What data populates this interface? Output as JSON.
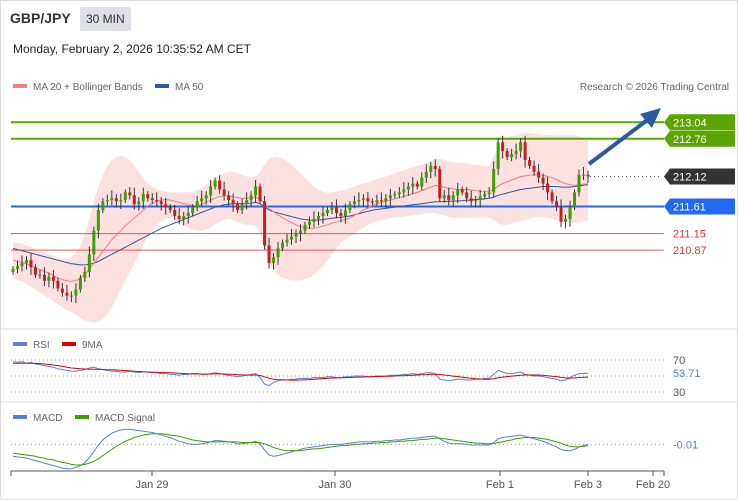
{
  "header": {
    "symbol": "GBP/JPY",
    "timeframe": "30 MIN",
    "datetime": "Monday, February 2, 2026 10:35:52 AM CET"
  },
  "main_panel": {
    "legend": [
      {
        "label": "MA 20 + Bollinger Bands",
        "color": "#f08080"
      },
      {
        "label": "MA 50",
        "color": "#2f5a9e"
      }
    ],
    "source": "Research © 2026 Trading Central"
  },
  "rsi_panel": {
    "legend": [
      {
        "label": "RSI",
        "color": "#5b7fdc"
      },
      {
        "label": "9MA",
        "color": "#dd0000"
      }
    ],
    "levels": [
      70,
      30
    ],
    "value_label": "53.71"
  },
  "macd_panel": {
    "legend": [
      {
        "label": "MACD",
        "color": "#5b7fdc"
      },
      {
        "label": "MACD Signal",
        "color": "#3c9e00"
      }
    ],
    "value_label": "-0.01"
  },
  "colors": {
    "green_level": "#5aa500",
    "blue_level": "#2468f2",
    "red_level": "#dd3333",
    "current_price_bg": "#333333",
    "bollinger_fill": "#fde0e0",
    "arrow": "#2c5aa0"
  },
  "chart_data": {
    "type": "candlestick",
    "y_range": [
      209.6,
      213.35
    ],
    "x_tick_labels": [
      "Jan 29",
      "Jan 30",
      "Feb 1",
      "Feb 3",
      "Feb 20"
    ],
    "price_levels": [
      {
        "value": 213.04,
        "label": "213.04",
        "kind": "resistance"
      },
      {
        "value": 212.76,
        "label": "212.76",
        "kind": "resistance"
      },
      {
        "value": 212.12,
        "label": "212.12",
        "kind": "current"
      },
      {
        "value": 211.61,
        "label": "211.61",
        "kind": "pivot"
      },
      {
        "value": 211.15,
        "label": "211.15",
        "kind": "support"
      },
      {
        "value": 210.87,
        "label": "210.87",
        "kind": "support"
      }
    ],
    "projected_target": 213.04,
    "closes": [
      210.55,
      210.6,
      210.65,
      210.7,
      210.58,
      210.45,
      210.45,
      210.35,
      210.42,
      210.35,
      210.22,
      210.15,
      210.1,
      210.1,
      210.2,
      210.4,
      210.5,
      210.8,
      211.2,
      211.55,
      211.7,
      211.72,
      211.75,
      211.7,
      211.72,
      211.85,
      211.8,
      211.65,
      211.7,
      211.82,
      211.75,
      211.72,
      211.7,
      211.65,
      211.6,
      211.55,
      211.45,
      211.4,
      211.45,
      211.5,
      211.6,
      211.7,
      211.75,
      211.8,
      211.95,
      212.05,
      211.9,
      211.8,
      211.72,
      211.65,
      211.55,
      211.65,
      211.72,
      211.8,
      211.95,
      211.7,
      210.95,
      210.65,
      210.75,
      210.9,
      211.0,
      211.05,
      211.1,
      211.15,
      211.2,
      211.3,
      211.35,
      211.4,
      211.45,
      211.5,
      211.55,
      211.6,
      211.5,
      211.45,
      211.55,
      211.65,
      211.7,
      211.72,
      211.75,
      211.7,
      211.68,
      211.72,
      211.7,
      211.75,
      211.8,
      211.82,
      211.85,
      211.9,
      211.95,
      212.0,
      211.95,
      212.1,
      212.2,
      212.3,
      212.25,
      211.75,
      211.8,
      211.72,
      211.8,
      211.9,
      211.85,
      211.75,
      211.7,
      211.72,
      211.78,
      211.82,
      211.85,
      212.25,
      212.7,
      212.55,
      212.45,
      212.5,
      212.55,
      212.7,
      212.4,
      212.3,
      212.2,
      212.1,
      212.0,
      211.85,
      211.7,
      211.6,
      211.35,
      211.4,
      211.6,
      211.85,
      212.15,
      212.15,
      212.12
    ],
    "ma20": [
      210.7,
      210.68,
      210.66,
      210.64,
      210.6,
      210.57,
      210.54,
      210.51,
      210.48,
      210.44,
      210.4,
      210.37,
      210.35,
      210.34,
      210.35,
      210.4,
      210.46,
      210.55,
      210.65,
      210.75,
      210.85,
      210.95,
      211.05,
      211.12,
      211.2,
      211.28,
      211.35,
      211.42,
      211.48,
      211.55,
      211.62,
      211.66,
      211.7,
      211.72,
      211.73,
      211.72,
      211.7,
      211.68,
      211.66,
      211.64,
      211.63,
      211.63,
      211.65,
      211.68,
      211.72,
      211.75,
      211.78,
      211.79,
      211.79,
      211.78,
      211.76,
      211.75,
      211.75,
      211.76,
      211.77,
      211.74,
      211.66,
      211.58,
      211.52,
      211.47,
      211.42,
      211.38,
      211.34,
      211.3,
      211.27,
      211.25,
      211.24,
      211.24,
      211.26,
      211.28,
      211.3,
      211.33,
      211.35,
      211.37,
      211.39,
      211.42,
      211.46,
      211.5,
      211.55,
      211.6,
      211.63,
      211.66,
      211.68,
      211.7,
      211.72,
      211.74,
      211.76,
      211.78,
      211.8,
      211.83,
      211.85,
      211.88,
      211.91,
      211.94,
      211.97,
      211.95,
      211.94,
      211.92,
      211.91,
      211.9,
      211.9,
      211.9,
      211.89,
      211.88,
      211.87,
      211.87,
      211.87,
      211.9,
      211.96,
      212.0,
      212.03,
      212.06,
      212.09,
      212.12,
      212.13,
      212.14,
      212.15,
      212.15,
      212.14,
      212.12,
      212.1,
      212.07,
      212.03,
      212.0,
      211.98,
      211.97,
      211.98,
      211.99,
      212.0
    ],
    "ma50": [
      210.9,
      210.88,
      210.86,
      210.84,
      210.82,
      210.8,
      210.78,
      210.76,
      210.74,
      210.72,
      210.7,
      210.68,
      210.66,
      210.64,
      210.63,
      210.62,
      210.62,
      210.63,
      210.65,
      210.68,
      210.72,
      210.76,
      210.8,
      210.84,
      210.88,
      210.92,
      210.96,
      211.0,
      211.04,
      211.08,
      211.12,
      211.16,
      211.2,
      211.24,
      211.27,
      211.3,
      211.33,
      211.36,
      211.39,
      211.42,
      211.45,
      211.48,
      211.51,
      211.54,
      211.57,
      211.6,
      211.62,
      211.64,
      211.65,
      211.66,
      211.66,
      211.66,
      211.66,
      211.67,
      211.68,
      211.66,
      211.6,
      211.55,
      211.52,
      211.5,
      211.48,
      211.46,
      211.44,
      211.42,
      211.4,
      211.39,
      211.38,
      211.38,
      211.38,
      211.39,
      211.4,
      211.41,
      211.42,
      211.43,
      211.44,
      211.45,
      211.47,
      211.49,
      211.51,
      211.53,
      211.55,
      211.56,
      211.57,
      211.58,
      211.59,
      211.6,
      211.61,
      211.62,
      211.63,
      211.64,
      211.65,
      211.66,
      211.67,
      211.68,
      211.69,
      211.69,
      211.69,
      211.7,
      211.7,
      211.71,
      211.71,
      211.72,
      211.72,
      211.73,
      211.73,
      211.74,
      211.75,
      211.77,
      211.8,
      211.82,
      211.84,
      211.86,
      211.88,
      211.9,
      211.91,
      211.92,
      211.93,
      211.94,
      211.95,
      211.95,
      211.95,
      211.95,
      211.94,
      211.94,
      211.94,
      211.95,
      211.96,
      211.97,
      211.98
    ],
    "bb_upper": [
      211.0,
      211.0,
      210.98,
      210.95,
      210.92,
      210.88,
      210.85,
      210.82,
      210.8,
      210.78,
      210.75,
      210.72,
      210.72,
      210.75,
      210.82,
      210.95,
      211.15,
      211.4,
      211.7,
      211.95,
      212.15,
      212.3,
      212.4,
      212.45,
      212.47,
      212.45,
      212.4,
      212.3,
      212.2,
      212.1,
      212.0,
      211.95,
      211.9,
      211.88,
      211.86,
      211.85,
      211.85,
      211.85,
      211.85,
      211.85,
      211.86,
      211.88,
      211.92,
      211.98,
      212.05,
      212.1,
      212.15,
      212.18,
      212.2,
      212.2,
      212.18,
      212.15,
      212.12,
      212.1,
      212.12,
      212.2,
      212.32,
      212.42,
      212.45,
      212.45,
      212.42,
      212.38,
      212.32,
      212.25,
      212.18,
      212.1,
      212.02,
      211.95,
      211.9,
      211.86,
      211.84,
      211.85,
      211.86,
      211.88,
      211.9,
      211.92,
      211.95,
      211.98,
      212.0,
      212.02,
      212.05,
      212.08,
      212.1,
      212.12,
      212.15,
      212.18,
      212.2,
      212.22,
      212.25,
      212.28,
      212.3,
      212.32,
      212.35,
      212.38,
      212.42,
      212.42,
      212.4,
      212.38,
      212.36,
      212.35,
      212.35,
      212.34,
      212.33,
      212.32,
      212.31,
      212.3,
      212.3,
      212.45,
      212.62,
      212.72,
      212.78,
      212.8,
      212.82,
      212.85,
      212.86,
      212.86,
      212.85,
      212.84,
      212.83,
      212.82,
      212.82,
      212.82,
      212.82,
      212.82,
      212.82,
      212.82,
      212.8,
      212.78,
      212.76
    ],
    "bb_lower": [
      210.4,
      210.36,
      210.34,
      210.3,
      210.25,
      210.2,
      210.15,
      210.1,
      210.05,
      210.0,
      209.95,
      209.9,
      209.85,
      209.82,
      209.78,
      209.72,
      209.68,
      209.66,
      209.65,
      209.66,
      209.7,
      209.78,
      209.9,
      210.05,
      210.2,
      210.35,
      210.5,
      210.65,
      210.8,
      210.95,
      211.1,
      211.2,
      211.3,
      211.36,
      211.4,
      211.42,
      211.4,
      211.35,
      211.3,
      211.25,
      211.22,
      211.2,
      211.2,
      211.22,
      211.25,
      211.3,
      211.35,
      211.38,
      211.4,
      211.38,
      211.35,
      211.32,
      211.3,
      211.3,
      211.28,
      211.15,
      210.9,
      210.7,
      210.55,
      210.45,
      210.4,
      210.38,
      210.36,
      210.35,
      210.36,
      210.38,
      210.4,
      210.45,
      210.52,
      210.6,
      210.7,
      210.8,
      210.9,
      211.0,
      211.05,
      211.1,
      211.15,
      211.2,
      211.25,
      211.3,
      211.33,
      211.36,
      211.38,
      211.4,
      211.41,
      211.42,
      211.43,
      211.44,
      211.45,
      211.46,
      211.47,
      211.48,
      211.5,
      211.5,
      211.5,
      211.48,
      211.46,
      211.44,
      211.42,
      211.42,
      211.42,
      211.42,
      211.42,
      211.42,
      211.42,
      211.42,
      211.42,
      211.38,
      211.32,
      211.3,
      211.3,
      211.32,
      211.34,
      211.36,
      211.38,
      211.4,
      211.42,
      211.44,
      211.43,
      211.42,
      211.4,
      211.38,
      211.36,
      211.35,
      211.34,
      211.34,
      211.35,
      211.36,
      211.38
    ],
    "rsi_range": [
      20,
      80
    ],
    "rsi": [
      68,
      67,
      68,
      66,
      67,
      65,
      64,
      63,
      62,
      61,
      59,
      58,
      57,
      56,
      56,
      57,
      58,
      60,
      61,
      59,
      58,
      57,
      56,
      56,
      55,
      55,
      56,
      55,
      54,
      55,
      55,
      54,
      54,
      53,
      53,
      52,
      52,
      51,
      52,
      52,
      53,
      53,
      52,
      52,
      53,
      54,
      53,
      52,
      51,
      50,
      49,
      50,
      51,
      52,
      53,
      48,
      40,
      38,
      42,
      44,
      45,
      45,
      46,
      46,
      47,
      47,
      47,
      48,
      48,
      48,
      49,
      49,
      48,
      48,
      49,
      49,
      50,
      50,
      50,
      49,
      49,
      50,
      50,
      50,
      51,
      51,
      51,
      52,
      52,
      53,
      52,
      53,
      54,
      54,
      53,
      46,
      45,
      44,
      45,
      46,
      46,
      45,
      45,
      46,
      46,
      47,
      47,
      52,
      57,
      55,
      53,
      53,
      54,
      55,
      52,
      51,
      50,
      50,
      49,
      48,
      47,
      46,
      44,
      45,
      48,
      51,
      53,
      53,
      53.71
    ],
    "rsi_ma9": [
      66,
      66,
      66,
      66,
      66,
      65.8,
      65.5,
      65,
      64.5,
      63.8,
      63,
      62,
      61,
      60,
      59.5,
      59,
      58.7,
      58.5,
      58.4,
      58.3,
      58.1,
      57.9,
      57.7,
      57.5,
      57.2,
      56.8,
      56.4,
      56,
      55.6,
      55.3,
      55,
      54.8,
      54.6,
      54.4,
      54.2,
      54,
      53.7,
      53.4,
      53.1,
      52.8,
      52.6,
      52.5,
      52.4,
      52.4,
      52.5,
      52.6,
      52.6,
      52.5,
      52.3,
      52,
      51.7,
      51.4,
      51.2,
      51.1,
      51.2,
      50.6,
      49,
      47.2,
      46,
      45.5,
      45.2,
      45,
      44.9,
      44.9,
      45,
      45.2,
      45.5,
      45.9,
      46.3,
      46.7,
      47.1,
      47.4,
      47.6,
      47.8,
      48,
      48.2,
      48.4,
      48.6,
      48.8,
      49,
      49.1,
      49.3,
      49.4,
      49.6,
      49.8,
      50,
      50.2,
      50.4,
      50.7,
      51,
      51.2,
      51.5,
      51.8,
      52.1,
      52.3,
      51.9,
      51.3,
      50.6,
      49.9,
      49.3,
      48.6,
      47.9,
      47.2,
      46.6,
      46.2,
      46,
      45.9,
      46.6,
      47.8,
      48.6,
      49.3,
      49.9,
      50.4,
      51,
      51.2,
      51.3,
      51.3,
      51.2,
      50.9,
      50.4,
      49.8,
      49.2,
      48.3,
      47.6,
      47.4,
      47.6,
      48,
      48.4,
      48.8
    ],
    "macd_range": [
      -0.42,
      0.3
    ],
    "macd": [
      -0.2,
      -0.21,
      -0.22,
      -0.23,
      -0.25,
      -0.27,
      -0.29,
      -0.31,
      -0.33,
      -0.35,
      -0.37,
      -0.39,
      -0.4,
      -0.4,
      -0.38,
      -0.35,
      -0.3,
      -0.22,
      -0.12,
      -0.02,
      0.06,
      0.12,
      0.17,
      0.2,
      0.22,
      0.23,
      0.23,
      0.22,
      0.21,
      0.2,
      0.19,
      0.18,
      0.16,
      0.14,
      0.12,
      0.1,
      0.07,
      0.04,
      0.02,
      0.0,
      -0.01,
      -0.01,
      0.0,
      0.01,
      0.03,
      0.05,
      0.05,
      0.04,
      0.03,
      0.02,
      0.0,
      0.0,
      0.01,
      0.02,
      0.04,
      0.0,
      -0.1,
      -0.18,
      -0.2,
      -0.19,
      -0.17,
      -0.15,
      -0.13,
      -0.11,
      -0.09,
      -0.07,
      -0.06,
      -0.05,
      -0.04,
      -0.03,
      -0.02,
      -0.01,
      -0.01,
      -0.01,
      0.0,
      0.01,
      0.02,
      0.03,
      0.03,
      0.03,
      0.03,
      0.04,
      0.04,
      0.05,
      0.05,
      0.06,
      0.06,
      0.07,
      0.08,
      0.09,
      0.09,
      0.1,
      0.11,
      0.12,
      0.12,
      0.08,
      0.04,
      0.01,
      0.0,
      0.0,
      0.0,
      -0.01,
      -0.02,
      -0.02,
      -0.02,
      -0.02,
      -0.02,
      0.02,
      0.08,
      0.1,
      0.11,
      0.12,
      0.13,
      0.14,
      0.12,
      0.1,
      0.08,
      0.06,
      0.04,
      0.01,
      -0.02,
      -0.05,
      -0.09,
      -0.11,
      -0.11,
      -0.09,
      -0.05,
      -0.03,
      -0.01
    ],
    "macd_signal": [
      -0.15,
      -0.16,
      -0.17,
      -0.18,
      -0.19,
      -0.2,
      -0.22,
      -0.23,
      -0.25,
      -0.26,
      -0.28,
      -0.3,
      -0.31,
      -0.33,
      -0.34,
      -0.34,
      -0.33,
      -0.31,
      -0.28,
      -0.24,
      -0.19,
      -0.14,
      -0.09,
      -0.04,
      0.0,
      0.04,
      0.07,
      0.1,
      0.12,
      0.14,
      0.15,
      0.16,
      0.16,
      0.16,
      0.15,
      0.14,
      0.13,
      0.12,
      0.1,
      0.08,
      0.06,
      0.05,
      0.04,
      0.03,
      0.03,
      0.03,
      0.03,
      0.03,
      0.03,
      0.03,
      0.03,
      0.02,
      0.02,
      0.02,
      0.02,
      0.02,
      0.0,
      -0.03,
      -0.06,
      -0.08,
      -0.1,
      -0.11,
      -0.11,
      -0.11,
      -0.11,
      -0.1,
      -0.09,
      -0.08,
      -0.08,
      -0.07,
      -0.06,
      -0.05,
      -0.04,
      -0.03,
      -0.03,
      -0.02,
      -0.01,
      -0.01,
      0.0,
      0.0,
      0.01,
      0.01,
      0.02,
      0.02,
      0.03,
      0.03,
      0.04,
      0.04,
      0.05,
      0.05,
      0.06,
      0.07,
      0.07,
      0.08,
      0.09,
      0.09,
      0.08,
      0.07,
      0.06,
      0.05,
      0.04,
      0.03,
      0.02,
      0.01,
      0.01,
      0.0,
      0.0,
      0.0,
      0.02,
      0.03,
      0.05,
      0.06,
      0.08,
      0.09,
      0.1,
      0.1,
      0.1,
      0.09,
      0.08,
      0.07,
      0.05,
      0.03,
      0.01,
      -0.02,
      -0.04,
      -0.05,
      -0.05,
      -0.04,
      -0.03
    ]
  }
}
